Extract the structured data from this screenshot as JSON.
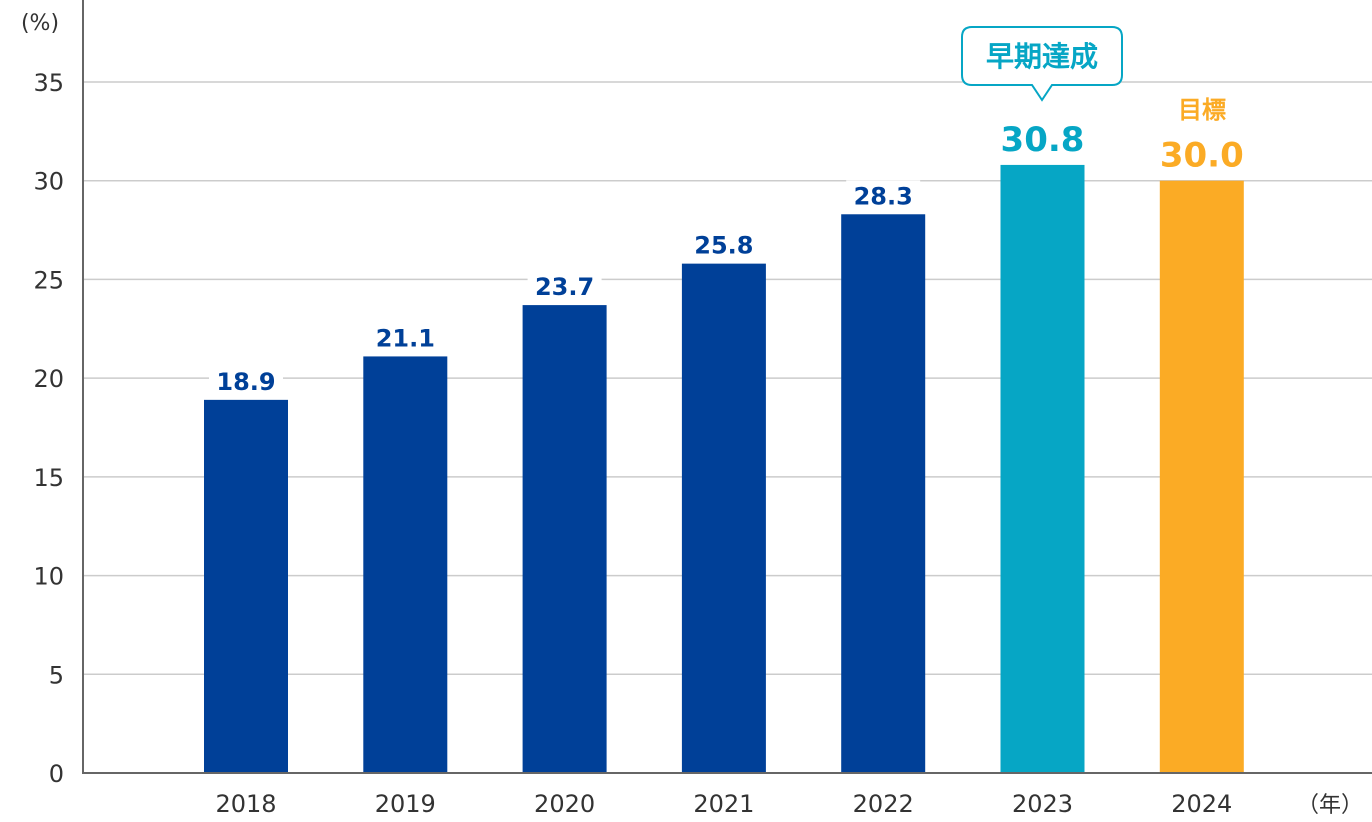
{
  "chart_data": {
    "type": "bar",
    "y_unit": "(%)",
    "x_unit": "（年）",
    "ylim": [
      0,
      35
    ],
    "yticks": [
      0,
      5,
      10,
      15,
      20,
      25,
      30,
      35
    ],
    "grid": true,
    "categories": [
      "2018",
      "2019",
      "2020",
      "2021",
      "2022",
      "2023",
      "2024"
    ],
    "values": [
      18.9,
      21.1,
      23.7,
      25.8,
      28.3,
      30.8,
      30.0
    ],
    "data_labels": [
      "18.9",
      "21.1",
      "23.7",
      "25.8",
      "28.3",
      "30.8",
      "30.0"
    ],
    "bar_colors": [
      "#004098",
      "#004098",
      "#004098",
      "#004098",
      "#004098",
      "#06a6c5",
      "#fbab25"
    ],
    "label_colors": [
      "#004098",
      "#004098",
      "#004098",
      "#004098",
      "#004098",
      "#06a6c5",
      "#fbab25"
    ],
    "callout": {
      "category": "2023",
      "text": "早期達成",
      "color": "#06a6c5"
    },
    "target_note": {
      "category": "2024",
      "text": "目標",
      "color": "#fbab25"
    }
  }
}
